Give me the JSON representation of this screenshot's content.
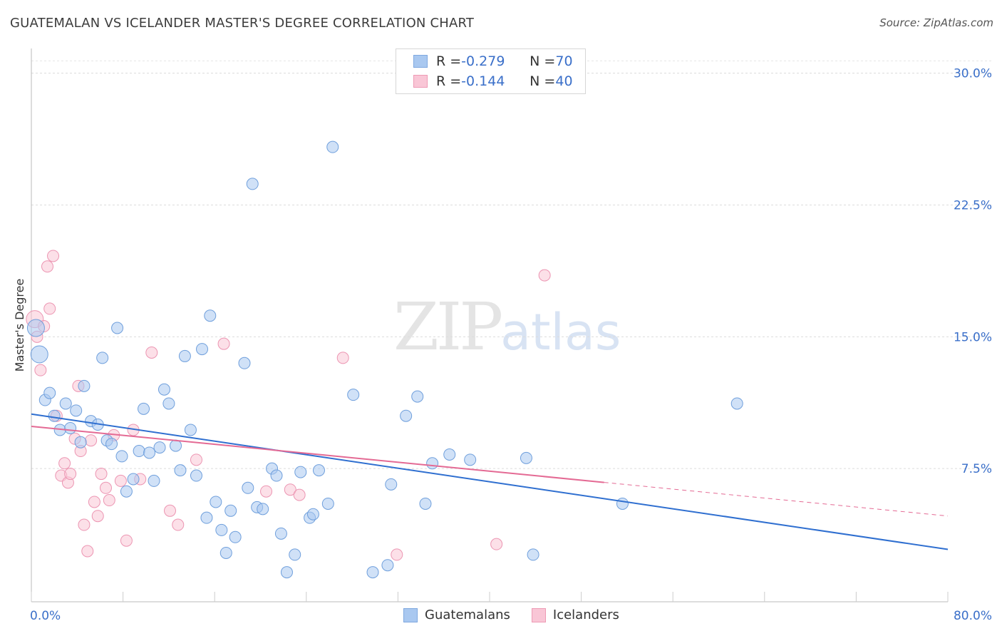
{
  "header": {
    "title": "GUATEMALAN VS ICELANDER MASTER'S DEGREE CORRELATION CHART",
    "source": "Source: ZipAtlas.com"
  },
  "watermark": {
    "zip": "ZIP",
    "atlas": "atlas"
  },
  "legend_top": {
    "rows": [
      {
        "r_label": "R = ",
        "r_value": "-0.279",
        "n_label": "N = ",
        "n_value": "70",
        "color": "#a9c8f0",
        "border": "#7fa8e0"
      },
      {
        "r_label": "R = ",
        "r_value": "-0.144",
        "n_label": "N = ",
        "n_value": "40",
        "color": "#f9c6d6",
        "border": "#ee9ab5"
      }
    ]
  },
  "legend_bottom": {
    "items": [
      {
        "label": "Guatemalans",
        "color": "#a9c8f0",
        "border": "#7fa8e0"
      },
      {
        "label": "Icelanders",
        "color": "#f9c6d6",
        "border": "#ee9ab5"
      }
    ]
  },
  "chart_data": {
    "type": "scatter",
    "title": "GUATEMALAN VS ICELANDER MASTER'S DEGREE CORRELATION CHART",
    "xlabel": "",
    "ylabel": "Master's Degree",
    "xlim": [
      0,
      80
    ],
    "ylim": [
      0,
      31
    ],
    "x_tick_labels": [
      "0.0%",
      "80.0%"
    ],
    "y_ticks": [
      7.5,
      15.0,
      22.5,
      30.0
    ],
    "y_tick_labels": [
      "7.5%",
      "15.0%",
      "22.5%",
      "30.0%"
    ],
    "grid": true,
    "legend_position": "top-center",
    "colors": {
      "blue_fill": "#a9c8f0",
      "blue_stroke": "#6f9fdc",
      "blue_line": "#2f6fd0",
      "pink_fill": "#f9c6d6",
      "pink_stroke": "#ec95b2",
      "pink_line": "#e46a94",
      "axis_text": "#3a6fc9"
    },
    "series": [
      {
        "name": "Guatemalans",
        "r": -0.279,
        "n": 70,
        "points": [
          [
            0.4,
            15.5
          ],
          [
            0.7,
            14.0
          ],
          [
            1.2,
            11.4
          ],
          [
            1.6,
            11.8
          ],
          [
            2.0,
            10.5
          ],
          [
            2.5,
            9.7
          ],
          [
            3.0,
            11.2
          ],
          [
            3.4,
            9.8
          ],
          [
            3.9,
            10.8
          ],
          [
            4.3,
            9.0
          ],
          [
            4.6,
            12.2
          ],
          [
            5.2,
            10.2
          ],
          [
            5.8,
            10.0
          ],
          [
            6.2,
            13.8
          ],
          [
            6.6,
            9.1
          ],
          [
            7.0,
            8.9
          ],
          [
            7.5,
            15.5
          ],
          [
            7.9,
            8.2
          ],
          [
            8.3,
            6.2
          ],
          [
            8.9,
            6.9
          ],
          [
            9.4,
            8.5
          ],
          [
            9.8,
            10.9
          ],
          [
            10.3,
            8.4
          ],
          [
            10.7,
            6.8
          ],
          [
            11.2,
            8.7
          ],
          [
            11.6,
            12.0
          ],
          [
            12.0,
            11.2
          ],
          [
            12.6,
            8.8
          ],
          [
            13.0,
            7.4
          ],
          [
            13.4,
            13.9
          ],
          [
            13.9,
            9.7
          ],
          [
            14.4,
            7.1
          ],
          [
            14.9,
            14.3
          ],
          [
            15.3,
            4.7
          ],
          [
            15.6,
            16.2
          ],
          [
            16.1,
            5.6
          ],
          [
            16.6,
            4.0
          ],
          [
            17.0,
            2.7
          ],
          [
            17.4,
            5.1
          ],
          [
            17.8,
            3.6
          ],
          [
            18.6,
            13.5
          ],
          [
            18.9,
            6.4
          ],
          [
            19.3,
            23.7
          ],
          [
            19.7,
            5.3
          ],
          [
            20.2,
            5.2
          ],
          [
            21.0,
            7.5
          ],
          [
            21.4,
            7.1
          ],
          [
            21.8,
            3.8
          ],
          [
            22.3,
            1.6
          ],
          [
            23.0,
            2.6
          ],
          [
            23.5,
            7.3
          ],
          [
            24.3,
            4.7
          ],
          [
            24.6,
            4.9
          ],
          [
            25.1,
            7.4
          ],
          [
            25.9,
            5.5
          ],
          [
            26.3,
            25.8
          ],
          [
            28.1,
            11.7
          ],
          [
            29.8,
            1.6
          ],
          [
            31.1,
            2.0
          ],
          [
            31.4,
            6.6
          ],
          [
            32.7,
            10.5
          ],
          [
            33.7,
            11.6
          ],
          [
            34.4,
            5.5
          ],
          [
            35.0,
            7.8
          ],
          [
            36.5,
            8.3
          ],
          [
            38.3,
            8.0
          ],
          [
            43.2,
            8.1
          ],
          [
            43.8,
            2.6
          ],
          [
            51.6,
            5.5
          ],
          [
            61.6,
            11.2
          ]
        ],
        "trendline": {
          "x": [
            0,
            80
          ],
          "y": [
            10.6,
            2.9
          ]
        }
      },
      {
        "name": "Icelanders",
        "r": -0.144,
        "n": 40,
        "points": [
          [
            0.3,
            16.0
          ],
          [
            0.5,
            15.0
          ],
          [
            0.8,
            13.1
          ],
          [
            1.1,
            15.6
          ],
          [
            1.4,
            19.0
          ],
          [
            1.6,
            16.6
          ],
          [
            1.9,
            19.6
          ],
          [
            2.2,
            10.5
          ],
          [
            2.6,
            7.1
          ],
          [
            2.9,
            7.8
          ],
          [
            3.2,
            6.7
          ],
          [
            3.4,
            7.2
          ],
          [
            3.8,
            9.2
          ],
          [
            4.1,
            12.2
          ],
          [
            4.3,
            8.5
          ],
          [
            4.6,
            4.3
          ],
          [
            4.9,
            2.8
          ],
          [
            5.2,
            9.1
          ],
          [
            5.5,
            5.6
          ],
          [
            5.8,
            4.8
          ],
          [
            6.1,
            7.2
          ],
          [
            6.5,
            6.4
          ],
          [
            6.8,
            5.7
          ],
          [
            7.2,
            9.4
          ],
          [
            7.8,
            6.8
          ],
          [
            8.3,
            3.4
          ],
          [
            8.9,
            9.7
          ],
          [
            9.5,
            6.9
          ],
          [
            10.5,
            14.1
          ],
          [
            12.1,
            5.1
          ],
          [
            12.8,
            4.3
          ],
          [
            14.4,
            8.0
          ],
          [
            16.8,
            14.6
          ],
          [
            20.5,
            6.2
          ],
          [
            22.6,
            6.3
          ],
          [
            23.4,
            6.0
          ],
          [
            27.2,
            13.8
          ],
          [
            31.9,
            2.6
          ],
          [
            40.6,
            3.2
          ],
          [
            44.8,
            18.5
          ]
        ],
        "trendline": {
          "x": [
            0,
            80
          ],
          "y": [
            9.9,
            4.8
          ],
          "solid_until_x": 50
        }
      }
    ]
  }
}
